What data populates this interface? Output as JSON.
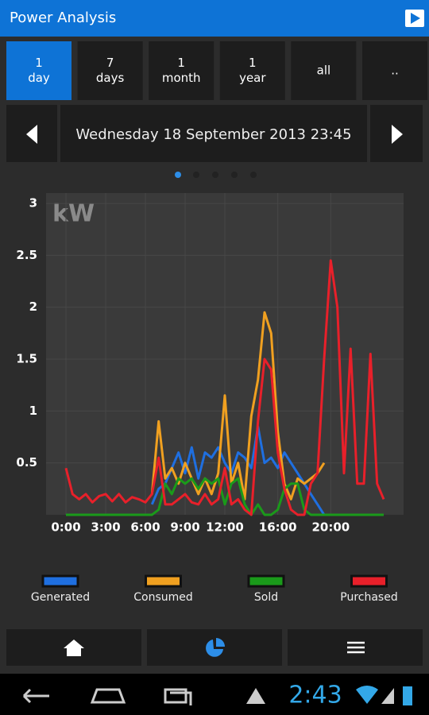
{
  "header": {
    "title": "Power Analysis"
  },
  "periods": [
    {
      "lines": [
        "1",
        "day"
      ]
    },
    {
      "lines": [
        "7",
        "days"
      ]
    },
    {
      "lines": [
        "1",
        "month"
      ]
    },
    {
      "lines": [
        "1",
        "year"
      ]
    },
    {
      "lines": [
        "all"
      ]
    },
    {
      "lines": [
        ".."
      ]
    }
  ],
  "date": "Wednesday 18 September 2013 23:45",
  "chart_data": {
    "type": "line",
    "unit_label": "kW",
    "x": [
      0,
      0.5,
      1,
      1.5,
      2,
      2.5,
      3,
      3.5,
      4,
      4.5,
      5,
      5.5,
      6,
      6.5,
      7,
      7.5,
      8,
      8.5,
      9,
      9.5,
      10,
      10.5,
      11,
      11.5,
      12,
      12.5,
      13,
      13.5,
      14,
      14.5,
      15,
      15.5,
      16,
      16.5,
      17,
      17.5,
      18,
      18.5,
      19,
      19.5,
      20,
      20.5,
      21,
      21.5,
      22,
      22.5,
      23,
      23.5,
      24
    ],
    "xlim": [
      -1.5,
      25.5
    ],
    "xticks": [
      {
        "value": 0,
        "label": "0:00"
      },
      {
        "value": 3,
        "label": "3:00"
      },
      {
        "value": 6,
        "label": "6:00"
      },
      {
        "value": 9,
        "label": "9:00"
      },
      {
        "value": 12,
        "label": "12:00"
      },
      {
        "value": 16,
        "label": "16:00"
      },
      {
        "value": 20,
        "label": "20:00"
      }
    ],
    "ylim": [
      0,
      3.1
    ],
    "yticks": [
      0.5,
      1,
      1.5,
      2,
      2.5,
      3
    ],
    "grid": true,
    "series": [
      {
        "name": "Generated",
        "color": "#1f6fe0",
        "values": [
          null,
          null,
          null,
          null,
          null,
          null,
          null,
          null,
          null,
          null,
          null,
          null,
          null,
          0.1,
          0.25,
          0.3,
          0.45,
          0.6,
          0.4,
          0.65,
          0.35,
          0.6,
          0.55,
          0.65,
          0.5,
          0.4,
          0.6,
          0.55,
          0.45,
          0.85,
          0.5,
          0.55,
          0.45,
          0.6,
          0.5,
          0.4,
          0.3,
          0.2,
          0.1,
          0,
          0,
          null,
          null,
          null,
          null,
          null,
          null,
          null,
          null
        ]
      },
      {
        "name": "Consumed",
        "color": "#f0a020",
        "values": [
          null,
          null,
          null,
          null,
          null,
          null,
          null,
          null,
          null,
          null,
          null,
          null,
          null,
          0.2,
          0.9,
          0.35,
          0.45,
          0.3,
          0.5,
          0.35,
          0.2,
          0.35,
          0.2,
          0.4,
          1.15,
          0.3,
          0.5,
          0.15,
          0.95,
          1.3,
          1.95,
          1.75,
          0.8,
          0.3,
          0.15,
          0.35,
          0.3,
          0.35,
          0.4,
          0.5,
          null,
          null,
          null,
          null,
          null,
          null,
          null,
          null,
          null
        ]
      },
      {
        "name": "Sold",
        "color": "#1a9a1a",
        "values": [
          0,
          0,
          0,
          0,
          0,
          0,
          0,
          0,
          0,
          0,
          0,
          0,
          0,
          0,
          0.05,
          0.3,
          0.2,
          0.35,
          0.3,
          0.35,
          0.25,
          0.35,
          0.3,
          0.35,
          0.1,
          0.3,
          0.35,
          0.1,
          0,
          0.1,
          0,
          0,
          0.05,
          0.25,
          0.3,
          0.3,
          0.05,
          0,
          0,
          0,
          0,
          0,
          0,
          0,
          0,
          0,
          0,
          0,
          0
        ]
      },
      {
        "name": "Purchased",
        "color": "#e8202a",
        "values": [
          0.45,
          0.2,
          0.15,
          0.2,
          0.12,
          0.18,
          0.2,
          0.13,
          0.2,
          0.12,
          0.17,
          0.15,
          0.12,
          0.2,
          0.55,
          0.1,
          0.1,
          0.15,
          0.2,
          0.12,
          0.1,
          0.2,
          0.1,
          0.15,
          0.45,
          0.1,
          0.15,
          0.05,
          0,
          0.9,
          1.5,
          1.4,
          0.6,
          0.25,
          0.05,
          0,
          0,
          0.3,
          0.4,
          1.5,
          2.45,
          2.0,
          0.4,
          1.6,
          0.3,
          0.3,
          1.55,
          0.3,
          0.15
        ]
      }
    ]
  },
  "status": {
    "time": "2:43"
  }
}
